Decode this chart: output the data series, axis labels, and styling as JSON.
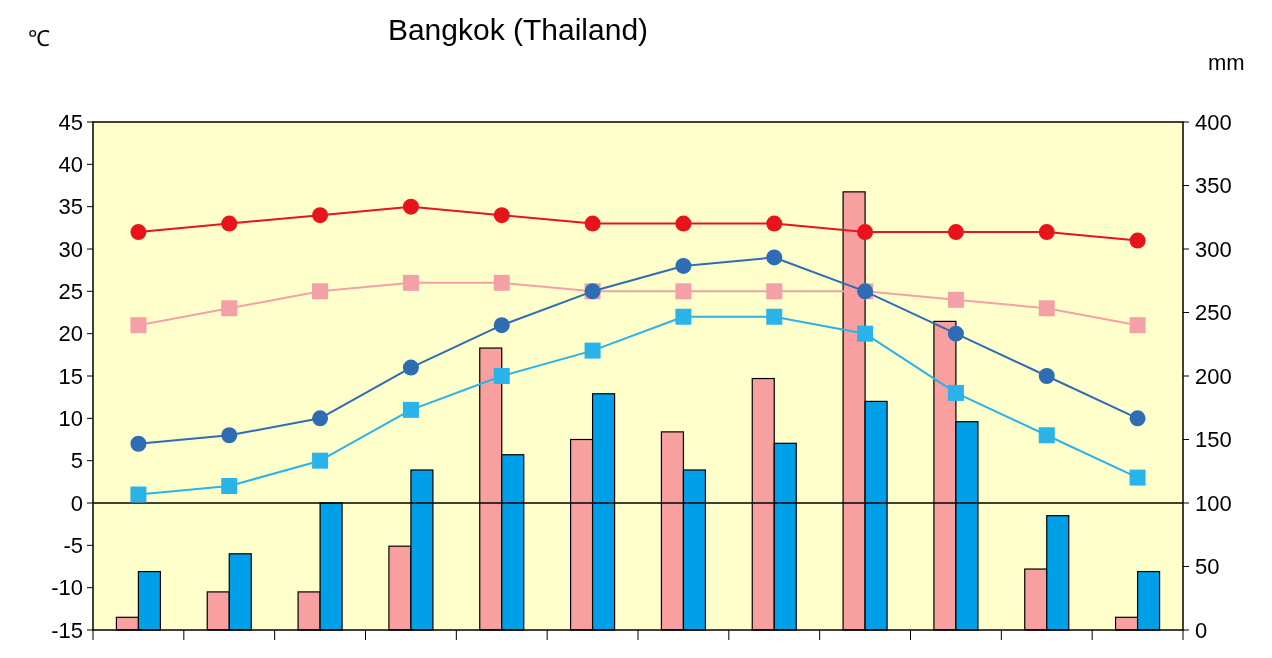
{
  "chart_data": {
    "type": "bar",
    "title": "Bangkok (Thailand)",
    "ylabel": "℃",
    "y2label": "mm",
    "categories": [
      null,
      null,
      null,
      null,
      null,
      null,
      null,
      null,
      null,
      null,
      null,
      null
    ],
    "series": [
      {
        "axis": "y2",
        "color": "#f8a0a0",
        "values": [
          10,
          30,
          30,
          66,
          222,
          150,
          156,
          198,
          345,
          243,
          48,
          10
        ]
      },
      {
        "axis": "y2",
        "color": "#00a0e8",
        "values": [
          46,
          60,
          100,
          126,
          138,
          186,
          126,
          147,
          180,
          164,
          90,
          46
        ]
      },
      {
        "type": "line",
        "marker": "circle",
        "color": "#e8141c",
        "values": [
          32,
          33,
          34,
          35,
          34,
          33,
          33,
          33,
          32,
          32,
          32,
          31
        ]
      },
      {
        "type": "line",
        "marker": "square",
        "color": "#f4a0a8",
        "values": [
          21,
          23,
          25,
          26,
          26,
          25,
          25,
          25,
          25,
          24,
          23,
          21
        ]
      },
      {
        "type": "line",
        "marker": "circle",
        "color": "#2e6cb4",
        "values": [
          7,
          8,
          10,
          16,
          21,
          25,
          28,
          29,
          25,
          20,
          15,
          10
        ]
      },
      {
        "type": "line",
        "marker": "square",
        "color": "#29b3e8",
        "values": [
          1,
          2,
          5,
          11,
          15,
          18,
          22,
          22,
          20,
          13,
          8,
          3
        ]
      }
    ],
    "ylim": [
      -15,
      45
    ],
    "yticks": [
      -15,
      -10,
      -5,
      0,
      5,
      10,
      15,
      20,
      25,
      30,
      35,
      40,
      45
    ],
    "y2lim": [
      0,
      400
    ],
    "y2ticks": [
      0,
      50,
      100,
      150,
      200,
      250,
      300,
      350,
      400
    ],
    "ref_lines": [
      {
        "axis": "y",
        "value": 0,
        "color": "#000000"
      }
    ],
    "grid": false
  }
}
